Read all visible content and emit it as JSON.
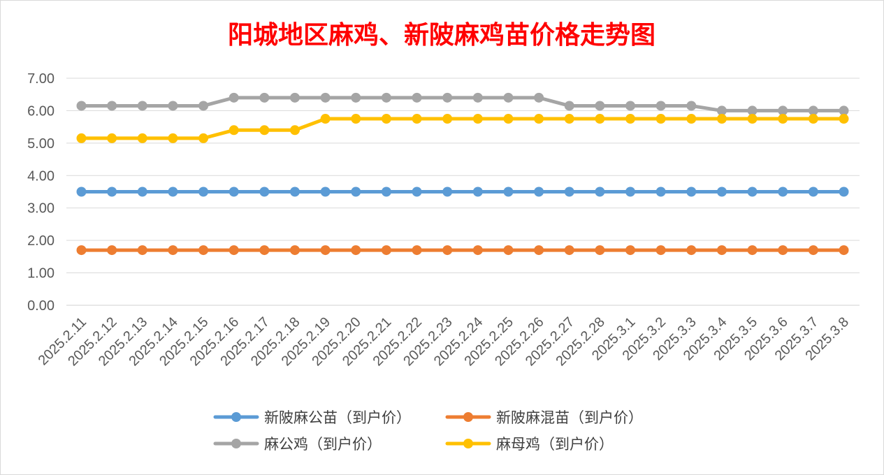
{
  "chart_data": {
    "type": "line",
    "title": "阳城地区麻鸡、新陂麻鸡苗价格走势图",
    "title_color": "#ff0000",
    "xlabel": "",
    "ylabel": "",
    "ylim": [
      0,
      7
    ],
    "y_ticks": [
      "0.00",
      "1.00",
      "2.00",
      "3.00",
      "4.00",
      "5.00",
      "6.00",
      "7.00"
    ],
    "grid": true,
    "legend_position": "bottom",
    "categories": [
      "2025.2.11",
      "2025.2.12",
      "2025.2.13",
      "2025.2.14",
      "2025.2.15",
      "2025.2.16",
      "2025.2.17",
      "2025.2.18",
      "2025.2.19",
      "2025.2.20",
      "2025.2.21",
      "2025.2.22",
      "2025.2.23",
      "2025.2.24",
      "2025.2.25",
      "2025.2.26",
      "2025.2.27",
      "2025.2.28",
      "2025.3.1",
      "2025.3.2",
      "2025.3.3",
      "2025.3.4",
      "2025.3.5",
      "2025.3.6",
      "2025.3.7",
      "2025.3.8"
    ],
    "series": [
      {
        "name": "新陂麻公苗（到户价）",
        "color": "#5b9bd5",
        "values": [
          3.5,
          3.5,
          3.5,
          3.5,
          3.5,
          3.5,
          3.5,
          3.5,
          3.5,
          3.5,
          3.5,
          3.5,
          3.5,
          3.5,
          3.5,
          3.5,
          3.5,
          3.5,
          3.5,
          3.5,
          3.5,
          3.5,
          3.5,
          3.5,
          3.5,
          3.5
        ]
      },
      {
        "name": "新陂麻混苗（到户价）",
        "color": "#ed7d31",
        "values": [
          1.7,
          1.7,
          1.7,
          1.7,
          1.7,
          1.7,
          1.7,
          1.7,
          1.7,
          1.7,
          1.7,
          1.7,
          1.7,
          1.7,
          1.7,
          1.7,
          1.7,
          1.7,
          1.7,
          1.7,
          1.7,
          1.7,
          1.7,
          1.7,
          1.7,
          1.7
        ]
      },
      {
        "name": "麻公鸡（到户价）",
        "color": "#a5a5a5",
        "values": [
          6.15,
          6.15,
          6.15,
          6.15,
          6.15,
          6.4,
          6.4,
          6.4,
          6.4,
          6.4,
          6.4,
          6.4,
          6.4,
          6.4,
          6.4,
          6.4,
          6.15,
          6.15,
          6.15,
          6.15,
          6.15,
          6.0,
          6.0,
          6.0,
          6.0,
          6.0
        ]
      },
      {
        "name": "麻母鸡（到户价）",
        "color": "#ffc000",
        "values": [
          5.15,
          5.15,
          5.15,
          5.15,
          5.15,
          5.4,
          5.4,
          5.4,
          5.75,
          5.75,
          5.75,
          5.75,
          5.75,
          5.75,
          5.75,
          5.75,
          5.75,
          5.75,
          5.75,
          5.75,
          5.75,
          5.75,
          5.75,
          5.75,
          5.75,
          5.75
        ]
      }
    ]
  }
}
